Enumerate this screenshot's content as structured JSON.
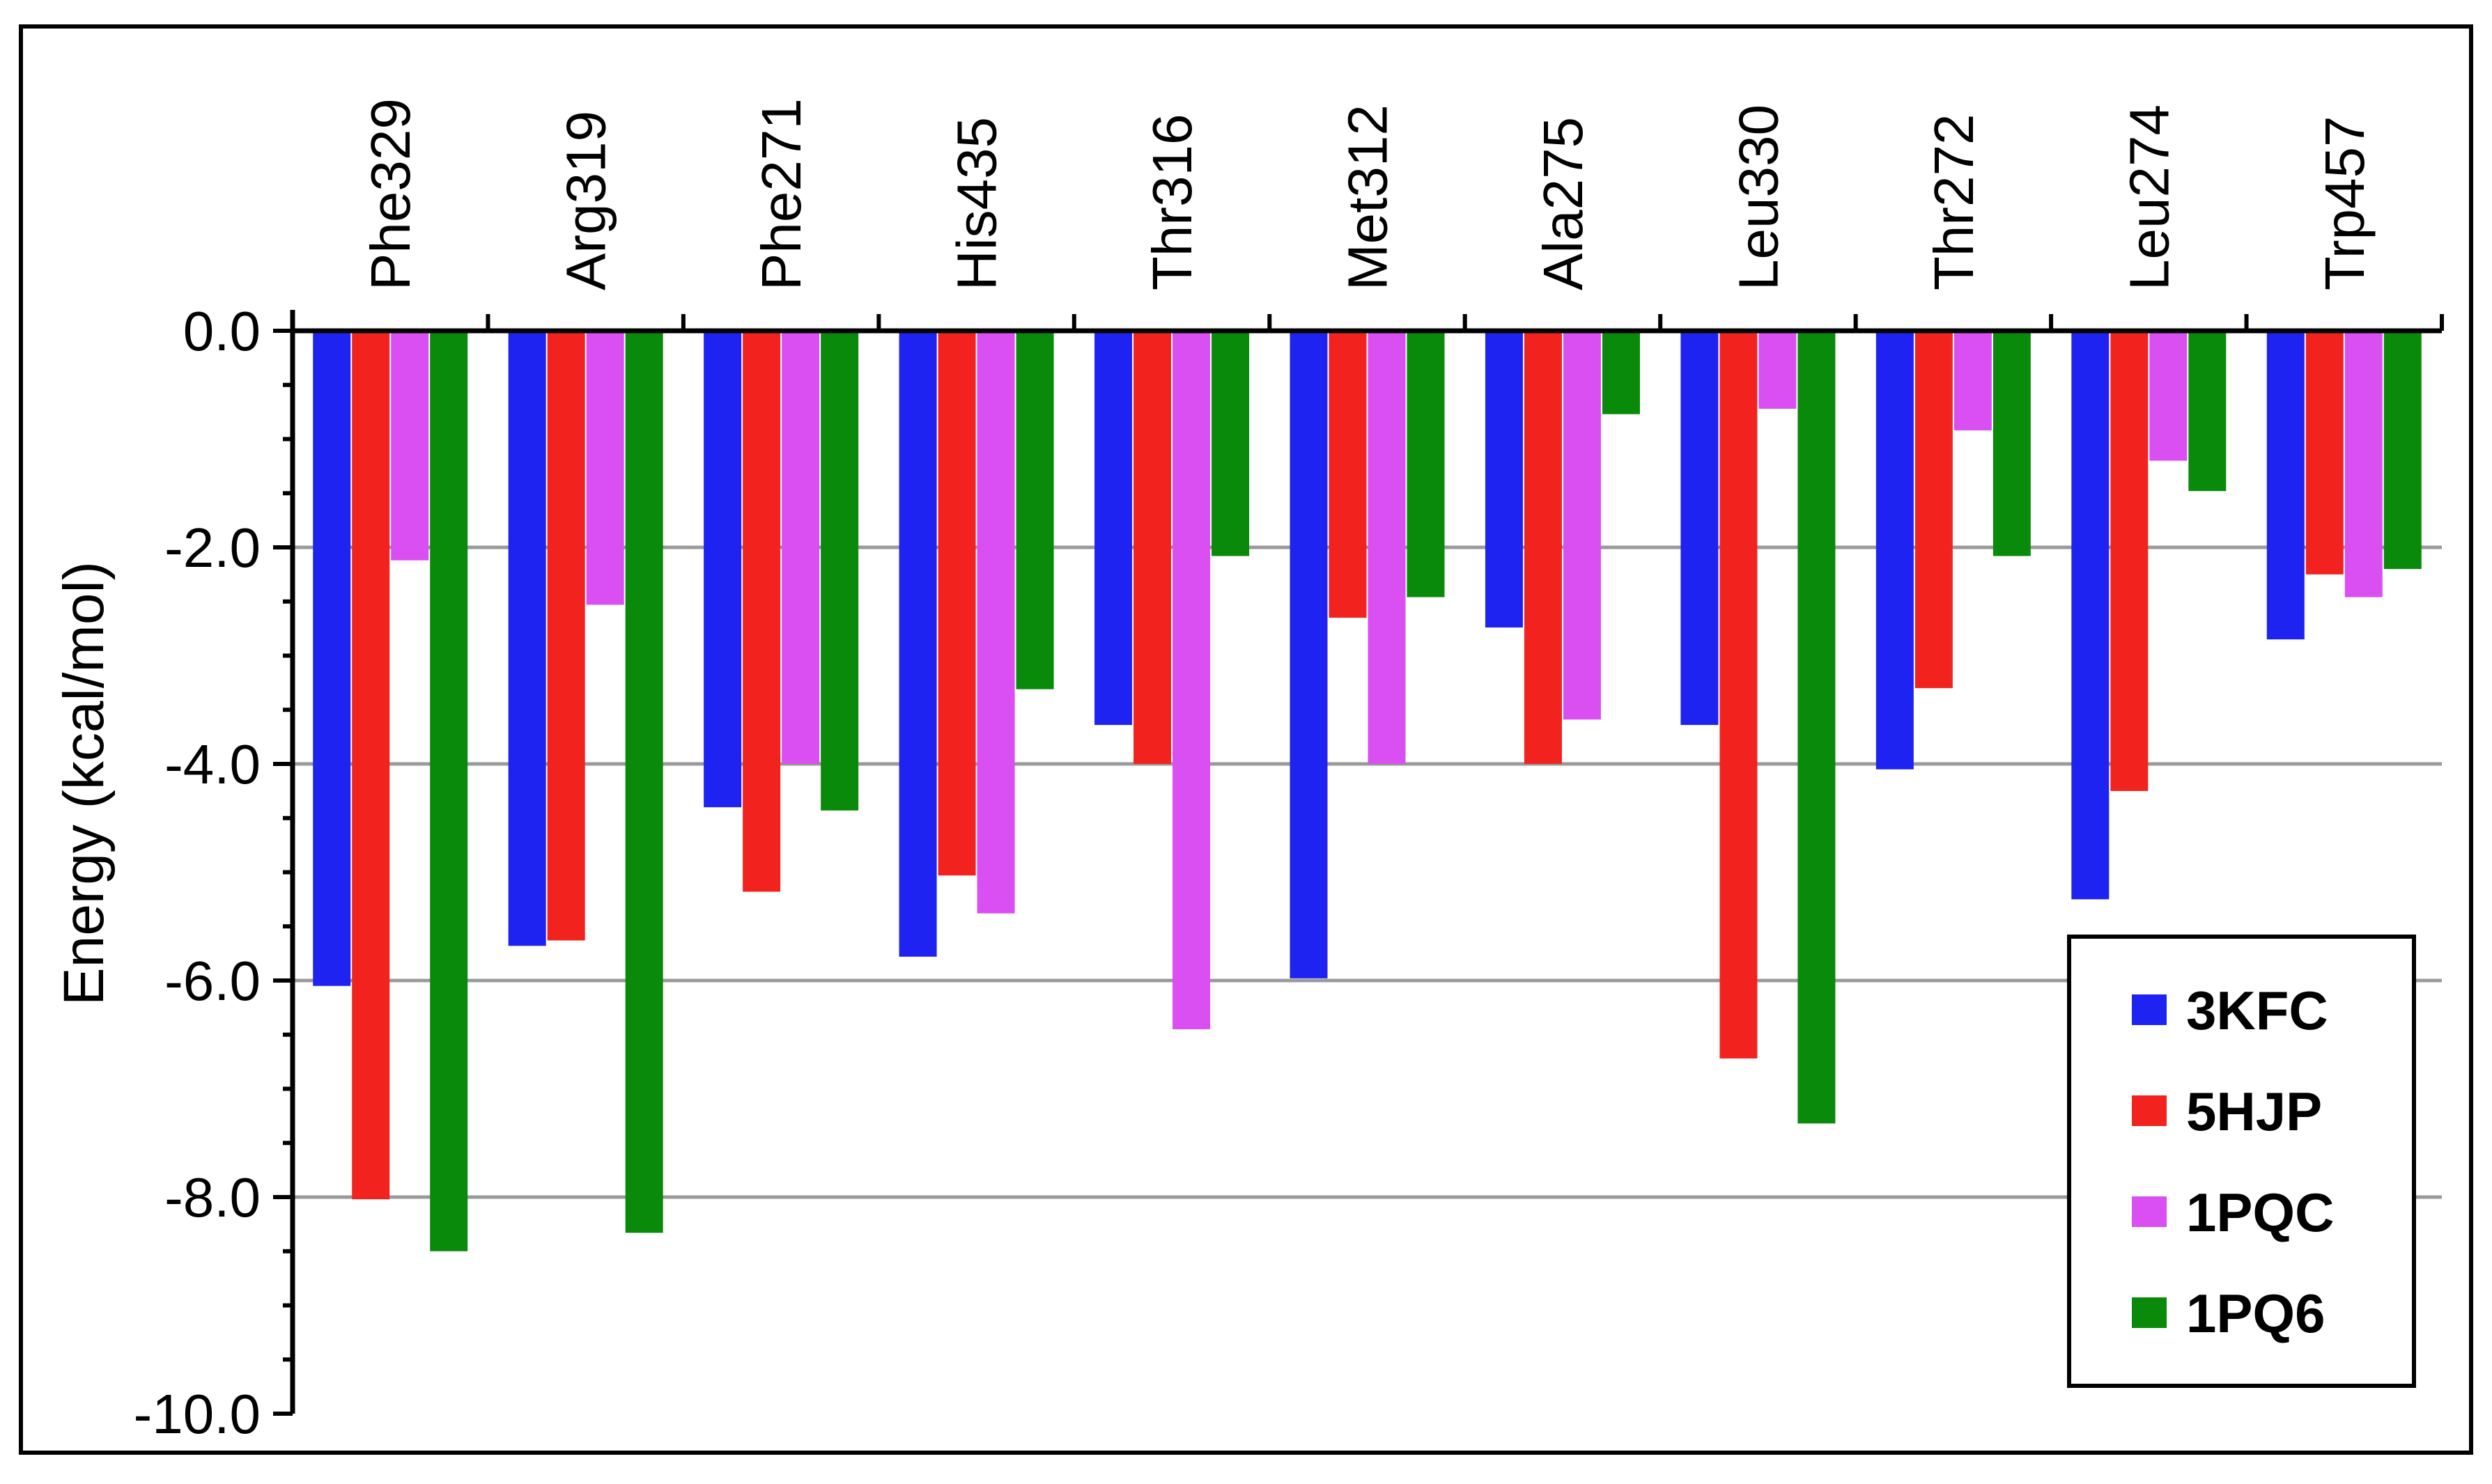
{
  "chart_data": {
    "type": "bar",
    "orientation": "vertical",
    "title": "",
    "xlabel": "",
    "ylabel": "Energy (kcal/mol)",
    "ylim": [
      -10.0,
      0.0
    ],
    "yticks": [
      "0.0",
      "-2.0",
      "-4.0",
      "-6.0",
      "-8.0",
      "-10.0"
    ],
    "ytick_values": [
      0,
      -2,
      -4,
      -6,
      -8,
      -10
    ],
    "grid": "horizontal",
    "category_axis": "top",
    "legend_position": "bottom-right",
    "categories": [
      "Phe329",
      "Arg319",
      "Phe271",
      "His435",
      "Thr316",
      "Met312",
      "Ala275",
      "Leu330",
      "Thr272",
      "Leu274",
      "Trp457"
    ],
    "series": [
      {
        "name": "3KFC",
        "color": "#1f23f2",
        "values": [
          -6.05,
          -5.68,
          -4.4,
          -5.78,
          -3.64,
          -5.98,
          -2.74,
          -3.64,
          -4.05,
          -5.25,
          -2.85
        ]
      },
      {
        "name": "5HJP",
        "color": "#f2231f",
        "values": [
          -8.02,
          -5.63,
          -5.18,
          -5.03,
          -4.0,
          -2.65,
          -4.0,
          -6.72,
          -3.3,
          -4.25,
          -2.25
        ]
      },
      {
        "name": "1PQC",
        "color": "#d94ff2",
        "values": [
          -2.12,
          -2.53,
          -4.0,
          -5.38,
          -6.45,
          -4.0,
          -3.59,
          -0.72,
          -0.92,
          -1.2,
          -2.46
        ]
      },
      {
        "name": "1PQ6",
        "color": "#0a8a0a",
        "values": [
          -8.5,
          -8.33,
          -4.43,
          -3.31,
          -2.08,
          -2.46,
          -0.77,
          -7.32,
          -2.08,
          -1.48,
          -2.2
        ]
      }
    ]
  }
}
